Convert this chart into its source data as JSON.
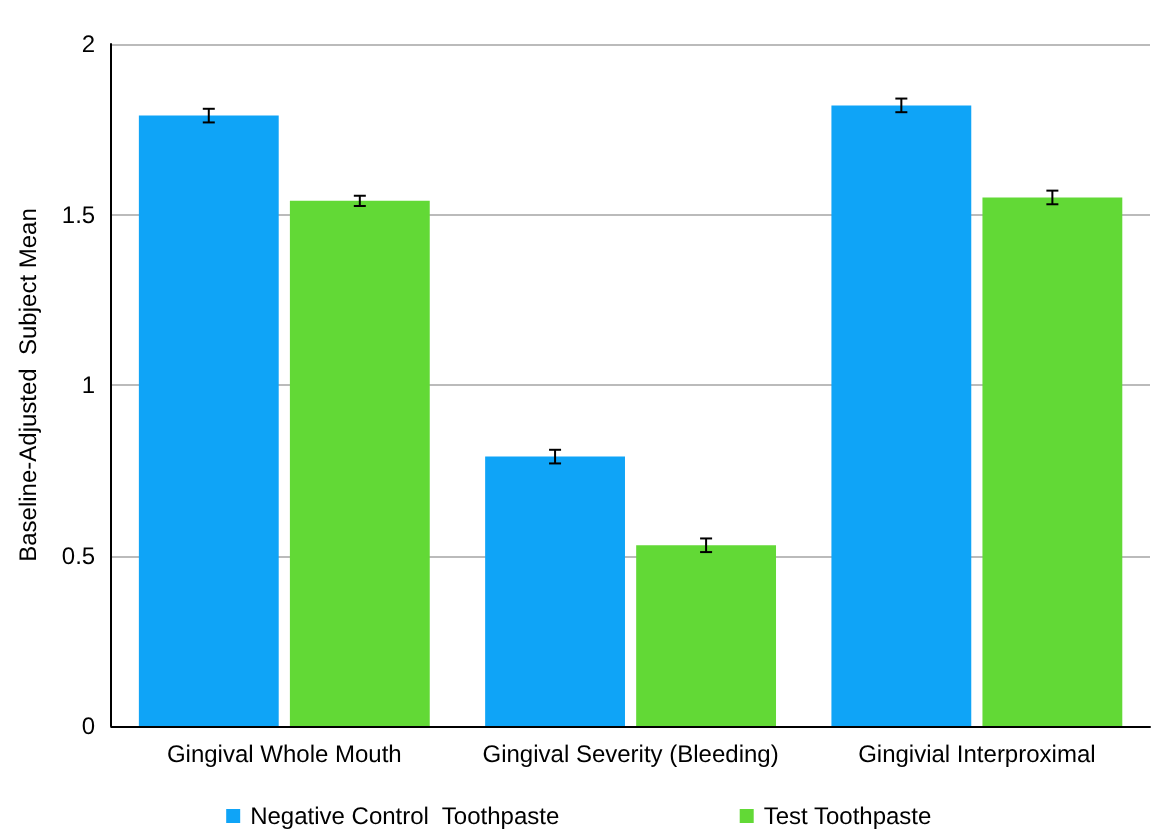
{
  "chart_data": {
    "type": "bar",
    "ylabel": "Baseline-Adjusted  Subject Mean",
    "categories": [
      "Gingival Whole Mouth",
      "Gingival Severity (Bleeding)",
      "Gingivial Interproximal"
    ],
    "series": [
      {
        "name": "Negative Control  Toothpaste",
        "color": "#0fa4f7",
        "values": [
          1.79,
          0.79,
          1.82
        ],
        "errors": [
          0.02,
          0.02,
          0.02
        ]
      },
      {
        "name": "Test Toothpaste",
        "color": "#62d936",
        "values": [
          1.54,
          0.53,
          1.55
        ],
        "errors": [
          0.015,
          0.02,
          0.02
        ]
      }
    ],
    "ylim": [
      0,
      2
    ],
    "yticks": [
      0,
      0.5,
      1,
      1.5,
      2
    ],
    "grid": "y",
    "legend": "bottom"
  }
}
